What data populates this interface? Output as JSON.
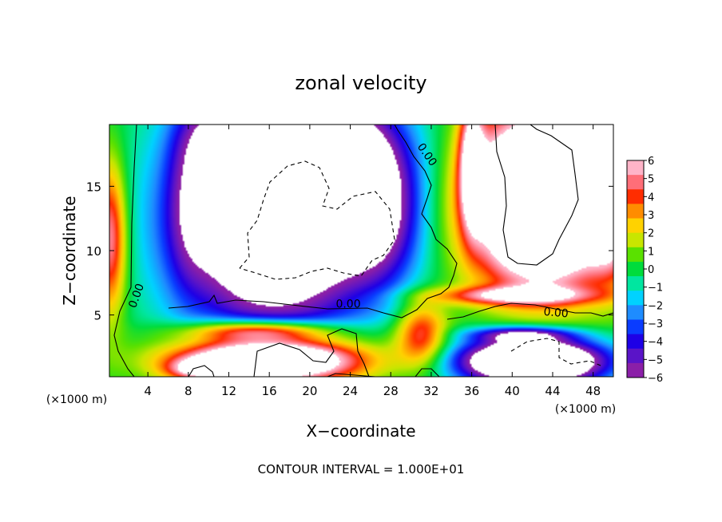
{
  "chart_data": {
    "type": "heatmap",
    "title": "zonal velocity",
    "xlabel": "X−coordinate",
    "ylabel": "Z−coordinate",
    "x_unit_left": "(×1000 m)",
    "x_unit_right": "(×1000 m)",
    "footer": "CONTOUR INTERVAL = 1.000E+01",
    "xlim": [
      0.2,
      50
    ],
    "ylim": [
      0.2,
      19.8
    ],
    "xticks": [
      4,
      8,
      12,
      16,
      20,
      24,
      28,
      32,
      36,
      40,
      44,
      48
    ],
    "yticks": [
      5,
      10,
      15
    ],
    "colorbar": {
      "min": -6,
      "max": 6,
      "ticks": [
        6,
        5,
        4,
        3,
        2,
        1,
        0,
        -1,
        -2,
        -3,
        -4,
        -5,
        -6
      ],
      "tick_labels": [
        "6",
        "5",
        "4",
        "3",
        "2",
        "1",
        "0",
        "−1",
        "−2",
        "−3",
        "−4",
        "−5",
        "−6"
      ],
      "colors": [
        "#8b1fa8",
        "#5a14c8",
        "#1e00e6",
        "#0a3cff",
        "#1e8cff",
        "#00d2ff",
        "#00e6a0",
        "#00dc3c",
        "#5ae100",
        "#c8e600",
        "#ffd200",
        "#ff8c00",
        "#ff2d00",
        "#ff6e78",
        "#ffb4c8"
      ]
    },
    "contour_labels": [
      {
        "text": "0.00",
        "x": 3.2,
        "y": 6.4,
        "angle": -70
      },
      {
        "text": "0.00",
        "x": 23.8,
        "y": 5.55,
        "angle": 0
      },
      {
        "text": "0.00",
        "x": 31.3,
        "y": 17.3,
        "angle": 55
      },
      {
        "text": "0.00",
        "x": 44.3,
        "y": 4.9,
        "angle": 5
      }
    ],
    "field_blobs": [
      {
        "x": 16.5,
        "y": 12.5,
        "rx": 9.5,
        "ry": 8.5,
        "v": -12
      },
      {
        "x": 22,
        "y": 17,
        "rx": 7,
        "ry": 5,
        "v": -8
      },
      {
        "x": 27,
        "y": 12,
        "rx": 4,
        "ry": 5,
        "v": -4
      },
      {
        "x": 12,
        "y": 19,
        "rx": 4,
        "ry": 3,
        "v": -4
      },
      {
        "x": 8,
        "y": 14,
        "rx": 2.2,
        "ry": 7,
        "v": -2
      },
      {
        "x": 0.3,
        "y": 11,
        "rx": 1.6,
        "ry": 6,
        "v": 6
      },
      {
        "x": 36,
        "y": 17,
        "rx": 1.2,
        "ry": 5,
        "v": 6
      },
      {
        "x": 43,
        "y": 14,
        "rx": 7,
        "ry": 6.5,
        "v": 16
      },
      {
        "x": 49.8,
        "y": 16,
        "rx": 2.2,
        "ry": 6,
        "v": 10
      },
      {
        "x": 15,
        "y": 3.8,
        "rx": 7,
        "ry": 0.8,
        "v": 6
      },
      {
        "x": 16,
        "y": 1.5,
        "rx": 9,
        "ry": 1.8,
        "v": 14
      },
      {
        "x": 31,
        "y": 3.5,
        "rx": 2.5,
        "ry": 2.5,
        "v": 5
      },
      {
        "x": 9,
        "y": 0.8,
        "rx": 3,
        "ry": 0.8,
        "v": 4
      },
      {
        "x": 40,
        "y": 6.5,
        "rx": 8,
        "ry": 0.7,
        "v": 5
      },
      {
        "x": 42,
        "y": 1.4,
        "rx": 7,
        "ry": 1.8,
        "v": -14
      },
      {
        "x": 41,
        "y": 3.5,
        "rx": 5,
        "ry": 0.6,
        "v": -5
      }
    ]
  }
}
